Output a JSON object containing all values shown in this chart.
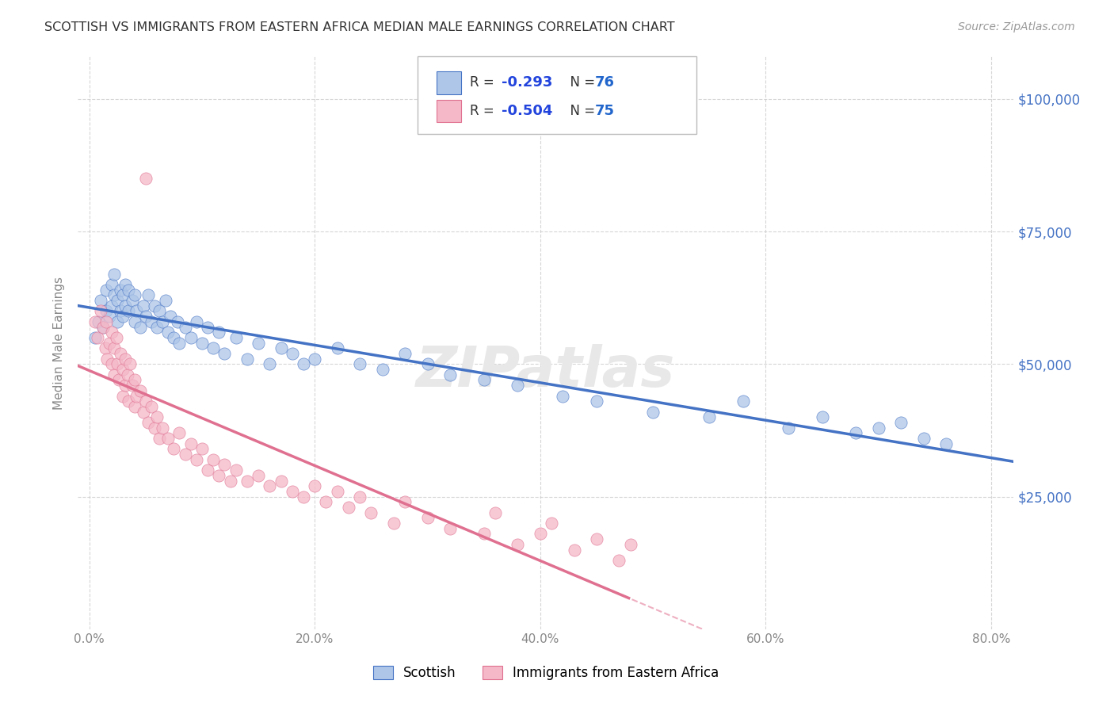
{
  "title": "SCOTTISH VS IMMIGRANTS FROM EASTERN AFRICA MEDIAN MALE EARNINGS CORRELATION CHART",
  "source": "Source: ZipAtlas.com",
  "ylabel": "Median Male Earnings",
  "xlabel_ticks": [
    "0.0%",
    "20.0%",
    "40.0%",
    "60.0%",
    "80.0%"
  ],
  "xlabel_vals": [
    0.0,
    0.2,
    0.4,
    0.6,
    0.8
  ],
  "ytick_labels": [
    "$25,000",
    "$50,000",
    "$75,000",
    "$100,000"
  ],
  "ytick_vals": [
    25000,
    50000,
    75000,
    100000
  ],
  "ylim": [
    0,
    108000
  ],
  "xlim": [
    -0.01,
    0.82
  ],
  "background_color": "#ffffff",
  "grid_color": "#cccccc",
  "scottish_color": "#aec6e8",
  "eastern_africa_color": "#f4b8c8",
  "line_scottish_color": "#4472c4",
  "line_eastern_color": "#e07090",
  "legend_label_scottish": "Scottish",
  "legend_label_eastern": "Immigrants from Eastern Africa",
  "R_scottish": -0.293,
  "N_scottish": 76,
  "R_eastern": -0.504,
  "N_eastern": 75,
  "title_color": "#333333",
  "scottish_x": [
    0.005,
    0.008,
    0.01,
    0.012,
    0.015,
    0.015,
    0.018,
    0.02,
    0.02,
    0.022,
    0.022,
    0.025,
    0.025,
    0.028,
    0.028,
    0.03,
    0.03,
    0.032,
    0.032,
    0.035,
    0.035,
    0.038,
    0.04,
    0.04,
    0.042,
    0.045,
    0.048,
    0.05,
    0.052,
    0.055,
    0.058,
    0.06,
    0.062,
    0.065,
    0.068,
    0.07,
    0.072,
    0.075,
    0.078,
    0.08,
    0.085,
    0.09,
    0.095,
    0.1,
    0.105,
    0.11,
    0.115,
    0.12,
    0.13,
    0.14,
    0.15,
    0.16,
    0.17,
    0.18,
    0.19,
    0.2,
    0.22,
    0.24,
    0.26,
    0.28,
    0.3,
    0.32,
    0.35,
    0.38,
    0.42,
    0.45,
    0.5,
    0.55,
    0.58,
    0.62,
    0.65,
    0.68,
    0.7,
    0.72,
    0.74,
    0.76
  ],
  "scottish_y": [
    55000,
    58000,
    62000,
    57000,
    60000,
    64000,
    59000,
    61000,
    65000,
    63000,
    67000,
    58000,
    62000,
    60000,
    64000,
    59000,
    63000,
    61000,
    65000,
    60000,
    64000,
    62000,
    58000,
    63000,
    60000,
    57000,
    61000,
    59000,
    63000,
    58000,
    61000,
    57000,
    60000,
    58000,
    62000,
    56000,
    59000,
    55000,
    58000,
    54000,
    57000,
    55000,
    58000,
    54000,
    57000,
    53000,
    56000,
    52000,
    55000,
    51000,
    54000,
    50000,
    53000,
    52000,
    50000,
    51000,
    53000,
    50000,
    49000,
    52000,
    50000,
    48000,
    47000,
    46000,
    44000,
    43000,
    41000,
    40000,
    43000,
    38000,
    40000,
    37000,
    38000,
    39000,
    36000,
    35000
  ],
  "eastern_x": [
    0.005,
    0.007,
    0.01,
    0.012,
    0.014,
    0.015,
    0.016,
    0.018,
    0.02,
    0.02,
    0.022,
    0.022,
    0.024,
    0.025,
    0.026,
    0.028,
    0.03,
    0.03,
    0.032,
    0.032,
    0.034,
    0.035,
    0.036,
    0.038,
    0.04,
    0.04,
    0.042,
    0.045,
    0.048,
    0.05,
    0.052,
    0.055,
    0.058,
    0.06,
    0.062,
    0.065,
    0.07,
    0.075,
    0.08,
    0.085,
    0.09,
    0.095,
    0.1,
    0.105,
    0.11,
    0.115,
    0.12,
    0.125,
    0.13,
    0.14,
    0.15,
    0.16,
    0.17,
    0.18,
    0.19,
    0.2,
    0.21,
    0.22,
    0.23,
    0.24,
    0.25,
    0.27,
    0.28,
    0.3,
    0.32,
    0.35,
    0.36,
    0.38,
    0.4,
    0.41,
    0.43,
    0.45,
    0.47,
    0.48,
    0.05
  ],
  "eastern_y": [
    58000,
    55000,
    60000,
    57000,
    53000,
    58000,
    51000,
    54000,
    56000,
    50000,
    53000,
    48000,
    55000,
    50000,
    47000,
    52000,
    49000,
    44000,
    51000,
    46000,
    48000,
    43000,
    50000,
    46000,
    47000,
    42000,
    44000,
    45000,
    41000,
    43000,
    39000,
    42000,
    38000,
    40000,
    36000,
    38000,
    36000,
    34000,
    37000,
    33000,
    35000,
    32000,
    34000,
    30000,
    32000,
    29000,
    31000,
    28000,
    30000,
    28000,
    29000,
    27000,
    28000,
    26000,
    25000,
    27000,
    24000,
    26000,
    23000,
    25000,
    22000,
    20000,
    24000,
    21000,
    19000,
    18000,
    22000,
    16000,
    18000,
    20000,
    15000,
    17000,
    13000,
    16000,
    85000
  ]
}
